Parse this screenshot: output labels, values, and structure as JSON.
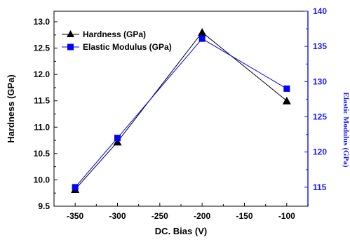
{
  "chart_data": {
    "type": "line",
    "xlabel": "DC. Bias (V)",
    "ylabel_left": "Hardness (GPa)",
    "ylabel_right": "Elastic Modulus (GPa)",
    "xlim": [
      -375,
      -75
    ],
    "ylim_left": [
      9.5,
      13.2
    ],
    "ylim_right": [
      112.3,
      140
    ],
    "x_ticks": [
      -350,
      -300,
      -250,
      -200,
      -150,
      -100
    ],
    "x_tick_labels": [
      "-350",
      "-300",
      "-250",
      "-200",
      "-150",
      "-100"
    ],
    "y_left_ticks": [
      9.5,
      10.0,
      10.5,
      11.0,
      11.5,
      12.0,
      12.5,
      13.0
    ],
    "y_left_tick_labels": [
      "9.5",
      "10.0",
      "10.5",
      "11.0",
      "11.5",
      "12.0",
      "12.5",
      "13.0"
    ],
    "y_right_ticks": [
      115,
      120,
      125,
      130,
      135,
      140
    ],
    "y_right_tick_labels": [
      "115",
      "120",
      "125",
      "130",
      "135",
      "140"
    ],
    "legend_position": "top-left",
    "series": [
      {
        "name": "Hardness (GPa)",
        "axis": "left",
        "marker": "triangle",
        "color": "#000000",
        "x": [
          -350,
          -300,
          -200,
          -100
        ],
        "values": [
          9.82,
          10.72,
          12.8,
          11.5
        ]
      },
      {
        "name": "Elastic Modulus (GPa)",
        "axis": "right",
        "marker": "square",
        "color": "#0000ff",
        "x": [
          -350,
          -300,
          -200,
          -100
        ],
        "values": [
          115.0,
          122.0,
          136.1,
          129.0
        ]
      }
    ]
  }
}
